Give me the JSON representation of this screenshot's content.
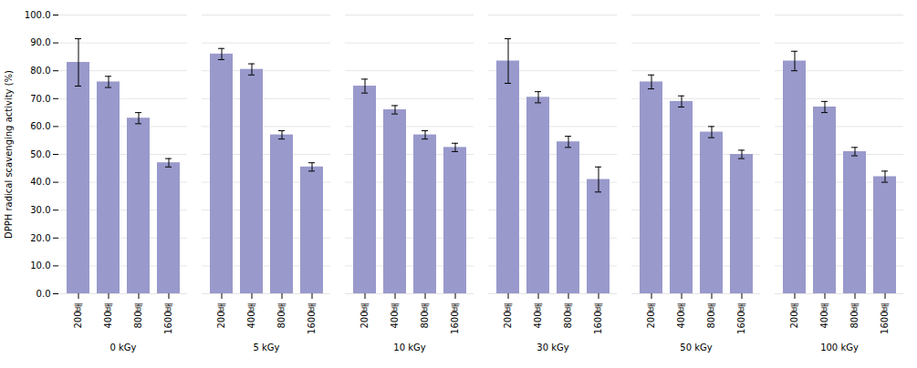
{
  "chart_data": {
    "type": "bar",
    "categories": [
      "0 kGy",
      "5 kGy",
      "10 kGy",
      "30 kGy",
      "50 kGy",
      "100 kGy"
    ],
    "series": [
      {
        "name": "200배",
        "color": "#9999CC",
        "values": [
          83.0,
          86.0,
          74.5,
          83.5,
          76.0,
          83.5
        ],
        "errors": [
          8.5,
          2.0,
          2.5,
          8.0,
          2.5,
          3.5
        ]
      },
      {
        "name": "400배",
        "color": "#9999CC",
        "values": [
          76.0,
          80.5,
          66.0,
          70.5,
          69.0,
          67.0
        ],
        "errors": [
          2.0,
          2.0,
          1.5,
          2.0,
          2.0,
          2.0
        ]
      },
      {
        "name": "800배",
        "color": "#9999CC",
        "values": [
          63.0,
          57.0,
          57.0,
          54.5,
          58.0,
          51.0
        ],
        "errors": [
          2.0,
          1.5,
          1.5,
          2.0,
          2.0,
          1.5
        ]
      },
      {
        "name": "1600배",
        "color": "#9999CC",
        "values": [
          47.0,
          45.5,
          52.5,
          41.0,
          50.0,
          42.0
        ],
        "errors": [
          1.5,
          1.5,
          1.5,
          4.5,
          1.5,
          2.0
        ]
      }
    ],
    "ylabel": "DPPH radical scavenging activity (%)",
    "ylim": [
      0,
      100
    ],
    "yticks": [
      {
        "value": 0,
        "label": "0.0"
      },
      {
        "value": 10,
        "label": "10.0"
      },
      {
        "value": 20,
        "label": "20.0"
      },
      {
        "value": 30,
        "label": "30.0"
      },
      {
        "value": 40,
        "label": "40.0"
      },
      {
        "value": 50,
        "label": "50.0"
      },
      {
        "value": 60,
        "label": "60.0"
      },
      {
        "value": 70,
        "label": "70.0"
      },
      {
        "value": 80,
        "label": "80.0"
      },
      {
        "value": 90,
        "label": "90.0"
      },
      {
        "value": 100,
        "label": "100.0"
      }
    ],
    "grid": true
  }
}
